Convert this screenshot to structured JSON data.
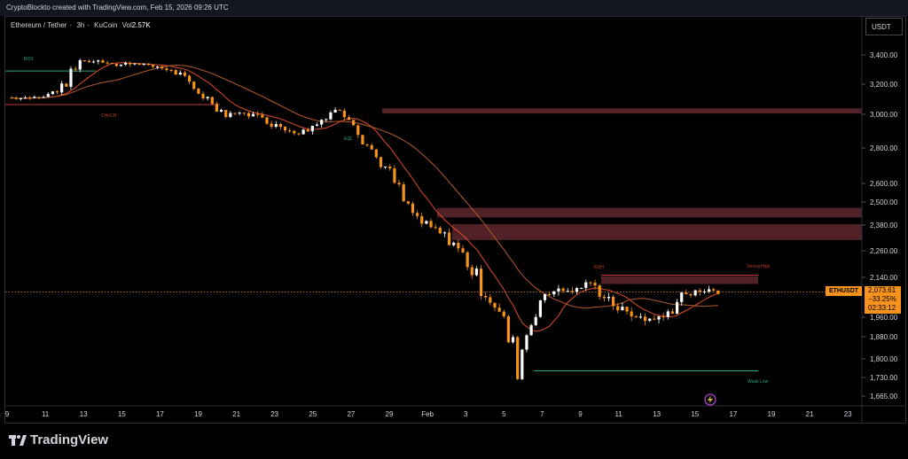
{
  "header": {
    "credit": "CryptoBlockto created with TradingView.com, Feb 15, 2026 09:26 UTC",
    "symbol": "Ethereum / Tether",
    "interval": "3h",
    "exchange": "KuCoin",
    "vol_label": "Vol",
    "vol_value": "2.57K",
    "currency": "USDT"
  },
  "last_price": {
    "ticker": "ETHUSDT",
    "price": "2,073.61",
    "change": "−33.25%",
    "countdown": "02:33:12"
  },
  "footer": {
    "brand": "TradingView"
  },
  "colors": {
    "background": "#000000",
    "bull": "#ffffff",
    "bear": "#f7931a",
    "ma_fast": "#e04b2a",
    "ma_slow": "#b55a2a",
    "supply_zone": "#6b2e34",
    "bos_line": "#2aa876",
    "choch_line": "#c0392b",
    "price_line": "#f7931a"
  },
  "chart_data": {
    "type": "line",
    "title": "Ethereum / Tether · 3h · KuCoin",
    "y_axis_ticks": [
      "3,400.00",
      "3,200.00",
      "3,000.00",
      "2,800.00",
      "2,600.00",
      "2,500.00",
      "2,380.00",
      "2,260.00",
      "2,140.00",
      "1,960.00",
      "1,880.00",
      "1,800.00",
      "1,730.00",
      "1,665.00"
    ],
    "y_tick_values": [
      3400,
      3200,
      3000,
      2800,
      2600,
      2500,
      2380,
      2260,
      2140,
      1960,
      1880,
      1800,
      1730,
      1665
    ],
    "x_axis_ticks": [
      "9",
      "11",
      "13",
      "15",
      "17",
      "19",
      "21",
      "23",
      "25",
      "27",
      "29",
      "Feb",
      "3",
      "5",
      "7",
      "9",
      "11",
      "13",
      "15",
      "17",
      "19",
      "21",
      "23"
    ],
    "price_series": {
      "name": "ETHUSDT",
      "x_index": [
        0,
        2,
        4,
        6,
        8,
        10,
        12,
        14,
        16,
        18,
        20,
        22,
        24,
        26,
        28,
        30,
        32,
        34,
        36,
        38,
        40,
        42,
        44,
        46,
        48,
        50,
        52,
        54,
        56,
        58,
        60,
        62,
        64,
        66,
        68,
        70,
        72,
        74,
        76,
        78
      ],
      "values": [
        3110,
        3105,
        3120,
        3180,
        3350,
        3360,
        3330,
        3350,
        3320,
        3300,
        3200,
        3100,
        3000,
        3010,
        2980,
        2920,
        2890,
        2950,
        3030,
        2960,
        2780,
        2650,
        2450,
        2380,
        2330,
        2250,
        2100,
        1980,
        1780,
        2020,
        2090,
        2080,
        2110,
        2040,
        1970,
        1950,
        1960,
        2050,
        2085,
        2073
      ]
    },
    "zones": [
      {
        "label": "",
        "top": 3040,
        "bottom": 3005
      },
      {
        "label": "",
        "top": 2470,
        "bottom": 2420
      },
      {
        "label": "",
        "top": 2385,
        "bottom": 2310
      },
      {
        "label": "Strong High",
        "top": 2145,
        "bottom": 2110
      }
    ],
    "annotations": [
      "BOS",
      "CHoCH",
      "EQL",
      "EQH",
      "Strong High",
      "Weak Low"
    ],
    "levels": [
      {
        "label": "BOS",
        "value": 3290
      },
      {
        "label": "CHoCH",
        "value": 3065
      },
      {
        "label": "Weak Low",
        "value": 1755
      },
      {
        "label": "Strong High",
        "value": 2150
      }
    ],
    "last_value": 2073.61
  }
}
